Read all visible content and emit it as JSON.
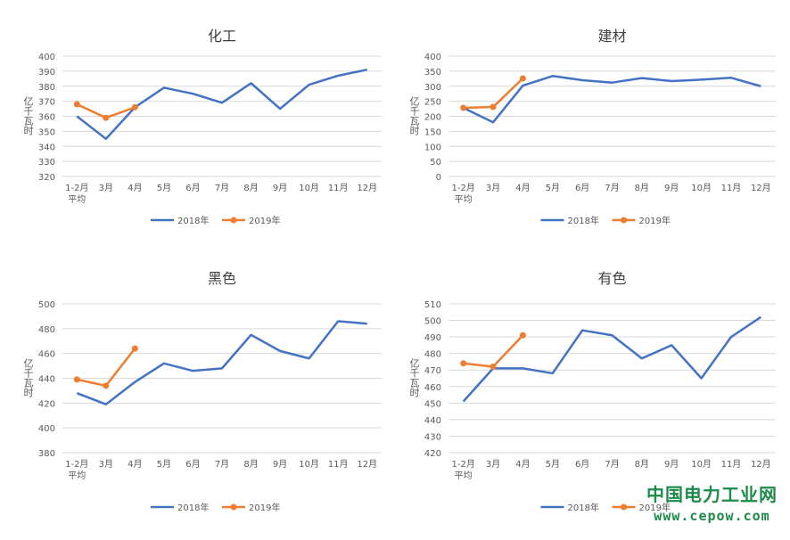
{
  "chart_data": [
    {
      "type": "line",
      "title": "化工",
      "ylabel": "亿千瓦时",
      "categories": [
        "1-2月\n平均",
        "3月",
        "4月",
        "5月",
        "6月",
        "7月",
        "8月",
        "9月",
        "10月",
        "11月",
        "12月"
      ],
      "yticks": [
        320,
        330,
        340,
        350,
        360,
        370,
        380,
        390,
        400
      ],
      "ylim": [
        320,
        400
      ],
      "grid": true,
      "legend": "bottom",
      "series": [
        {
          "name": "2018年",
          "color": "#4472c4",
          "marker": false,
          "values": [
            360,
            345,
            366,
            379,
            375,
            369,
            382,
            365,
            381,
            387,
            391
          ]
        },
        {
          "name": "2019年",
          "color": "#ed7d31",
          "marker": true,
          "values": [
            368,
            359,
            366,
            null,
            null,
            null,
            null,
            null,
            null,
            null,
            null
          ]
        }
      ]
    },
    {
      "type": "line",
      "title": "建材",
      "ylabel": "亿千瓦时",
      "categories": [
        "1-2月\n平均",
        "3月",
        "4月",
        "5月",
        "6月",
        "7月",
        "8月",
        "9月",
        "10月",
        "11月",
        "12月"
      ],
      "yticks": [
        0,
        50,
        100,
        150,
        200,
        250,
        300,
        350,
        400
      ],
      "ylim": [
        0,
        400
      ],
      "grid": true,
      "legend": "bottom",
      "series": [
        {
          "name": "2018年",
          "color": "#4472c4",
          "marker": false,
          "values": [
            228,
            180,
            302,
            334,
            320,
            312,
            327,
            317,
            322,
            328,
            300
          ]
        },
        {
          "name": "2019年",
          "color": "#ed7d31",
          "marker": true,
          "values": [
            228,
            231,
            326,
            null,
            null,
            null,
            null,
            null,
            null,
            null,
            null
          ]
        }
      ]
    },
    {
      "type": "line",
      "title": "黑色",
      "ylabel": "亿千瓦时",
      "categories": [
        "1-2月\n平均",
        "3月",
        "4月",
        "5月",
        "6月",
        "7月",
        "8月",
        "9月",
        "10月",
        "11月",
        "12月"
      ],
      "yticks": [
        380,
        400,
        420,
        440,
        460,
        480,
        500
      ],
      "ylim": [
        380,
        500
      ],
      "grid": true,
      "legend": "bottom",
      "series": [
        {
          "name": "2018年",
          "color": "#4472c4",
          "marker": false,
          "values": [
            428,
            419,
            437,
            452,
            446,
            448,
            475,
            462,
            456,
            486,
            484
          ]
        },
        {
          "name": "2019年",
          "color": "#ed7d31",
          "marker": true,
          "values": [
            439,
            434,
            464,
            null,
            null,
            null,
            null,
            null,
            null,
            null,
            null
          ]
        }
      ]
    },
    {
      "type": "line",
      "title": "有色",
      "ylabel": "亿千瓦时",
      "categories": [
        "1-2月\n平均",
        "3月",
        "4月",
        "5月",
        "6月",
        "7月",
        "8月",
        "9月",
        "10月",
        "11月",
        "12月"
      ],
      "yticks": [
        420,
        430,
        440,
        450,
        460,
        470,
        480,
        490,
        500,
        510
      ],
      "ylim": [
        420,
        510
      ],
      "grid": true,
      "legend": "bottom",
      "series": [
        {
          "name": "2018年",
          "color": "#4472c4",
          "marker": false,
          "values": [
            451,
            471,
            471,
            468,
            494,
            491,
            477,
            485,
            465,
            490,
            502
          ]
        },
        {
          "name": "2019年",
          "color": "#ed7d31",
          "marker": true,
          "values": [
            474,
            472,
            491,
            null,
            null,
            null,
            null,
            null,
            null,
            null,
            null
          ]
        }
      ]
    }
  ],
  "watermark": {
    "cn": "中国电力工业网",
    "en": "www.cepow.com"
  }
}
